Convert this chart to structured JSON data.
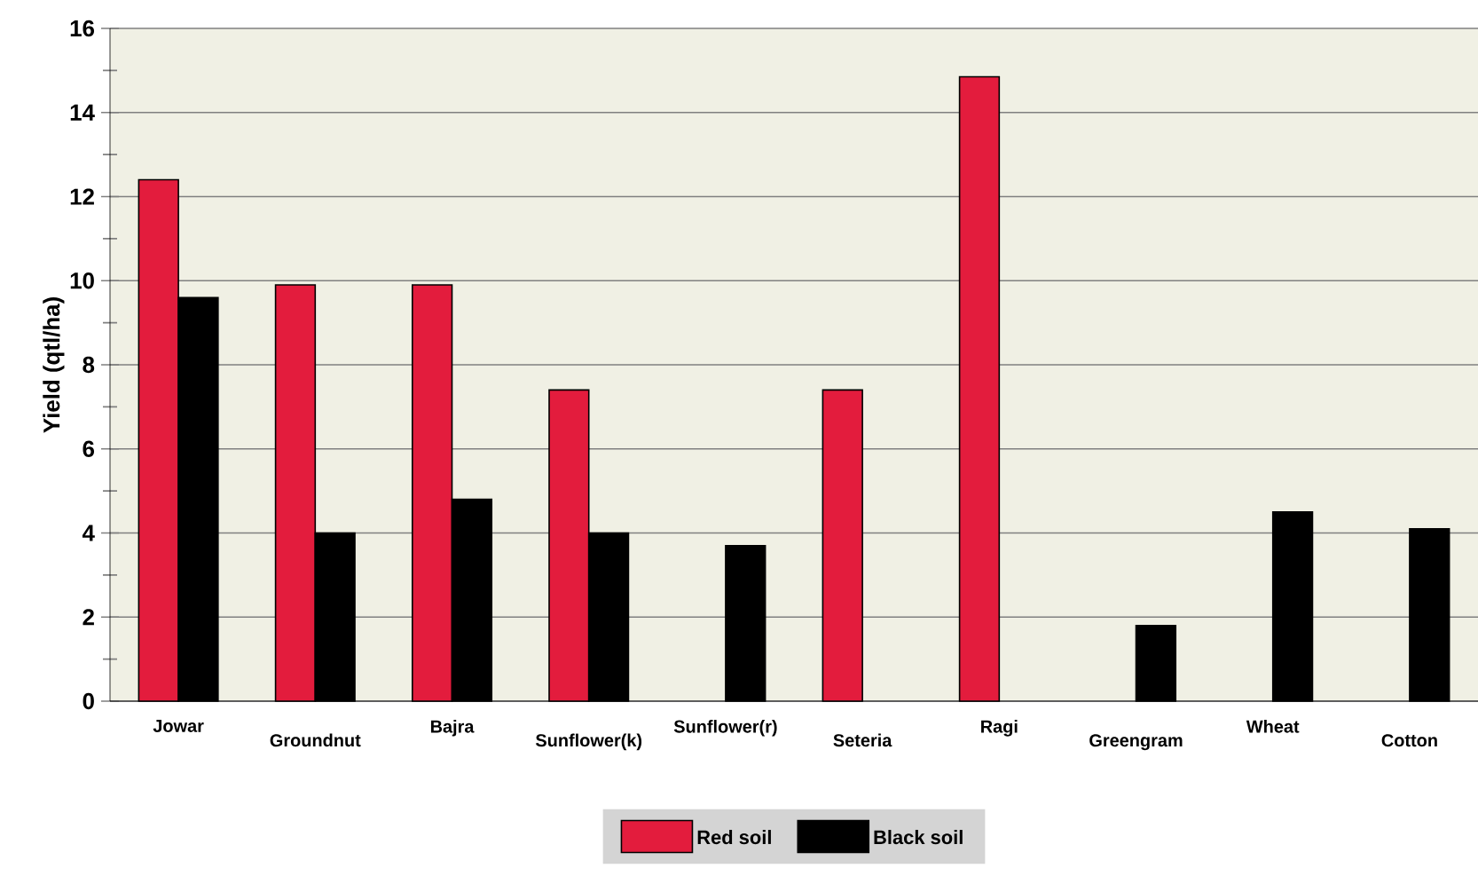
{
  "chart_data": {
    "type": "bar",
    "ylabel": "Yield (qtl/ha)",
    "categories": [
      "Jowar",
      "Groundnut",
      "Bajra",
      "Sunflower(k)",
      "Sunflower(r)",
      "Seteria",
      "Ragi",
      "Greengram",
      "Wheat",
      "Cotton"
    ],
    "series": [
      {
        "name": "Red soil",
        "color": "#e31c3d",
        "values": [
          12.4,
          9.9,
          9.9,
          7.4,
          null,
          7.4,
          14.85,
          null,
          null,
          null
        ]
      },
      {
        "name": "Black soil",
        "color": "#000000",
        "values": [
          9.6,
          4.0,
          4.8,
          4.0,
          3.7,
          null,
          null,
          1.8,
          4.5,
          4.1
        ]
      }
    ],
    "ylim": [
      0,
      16
    ],
    "yticks": [
      0,
      2,
      4,
      6,
      8,
      10,
      12,
      14,
      16
    ],
    "grid": "y",
    "legend": "bottom"
  }
}
